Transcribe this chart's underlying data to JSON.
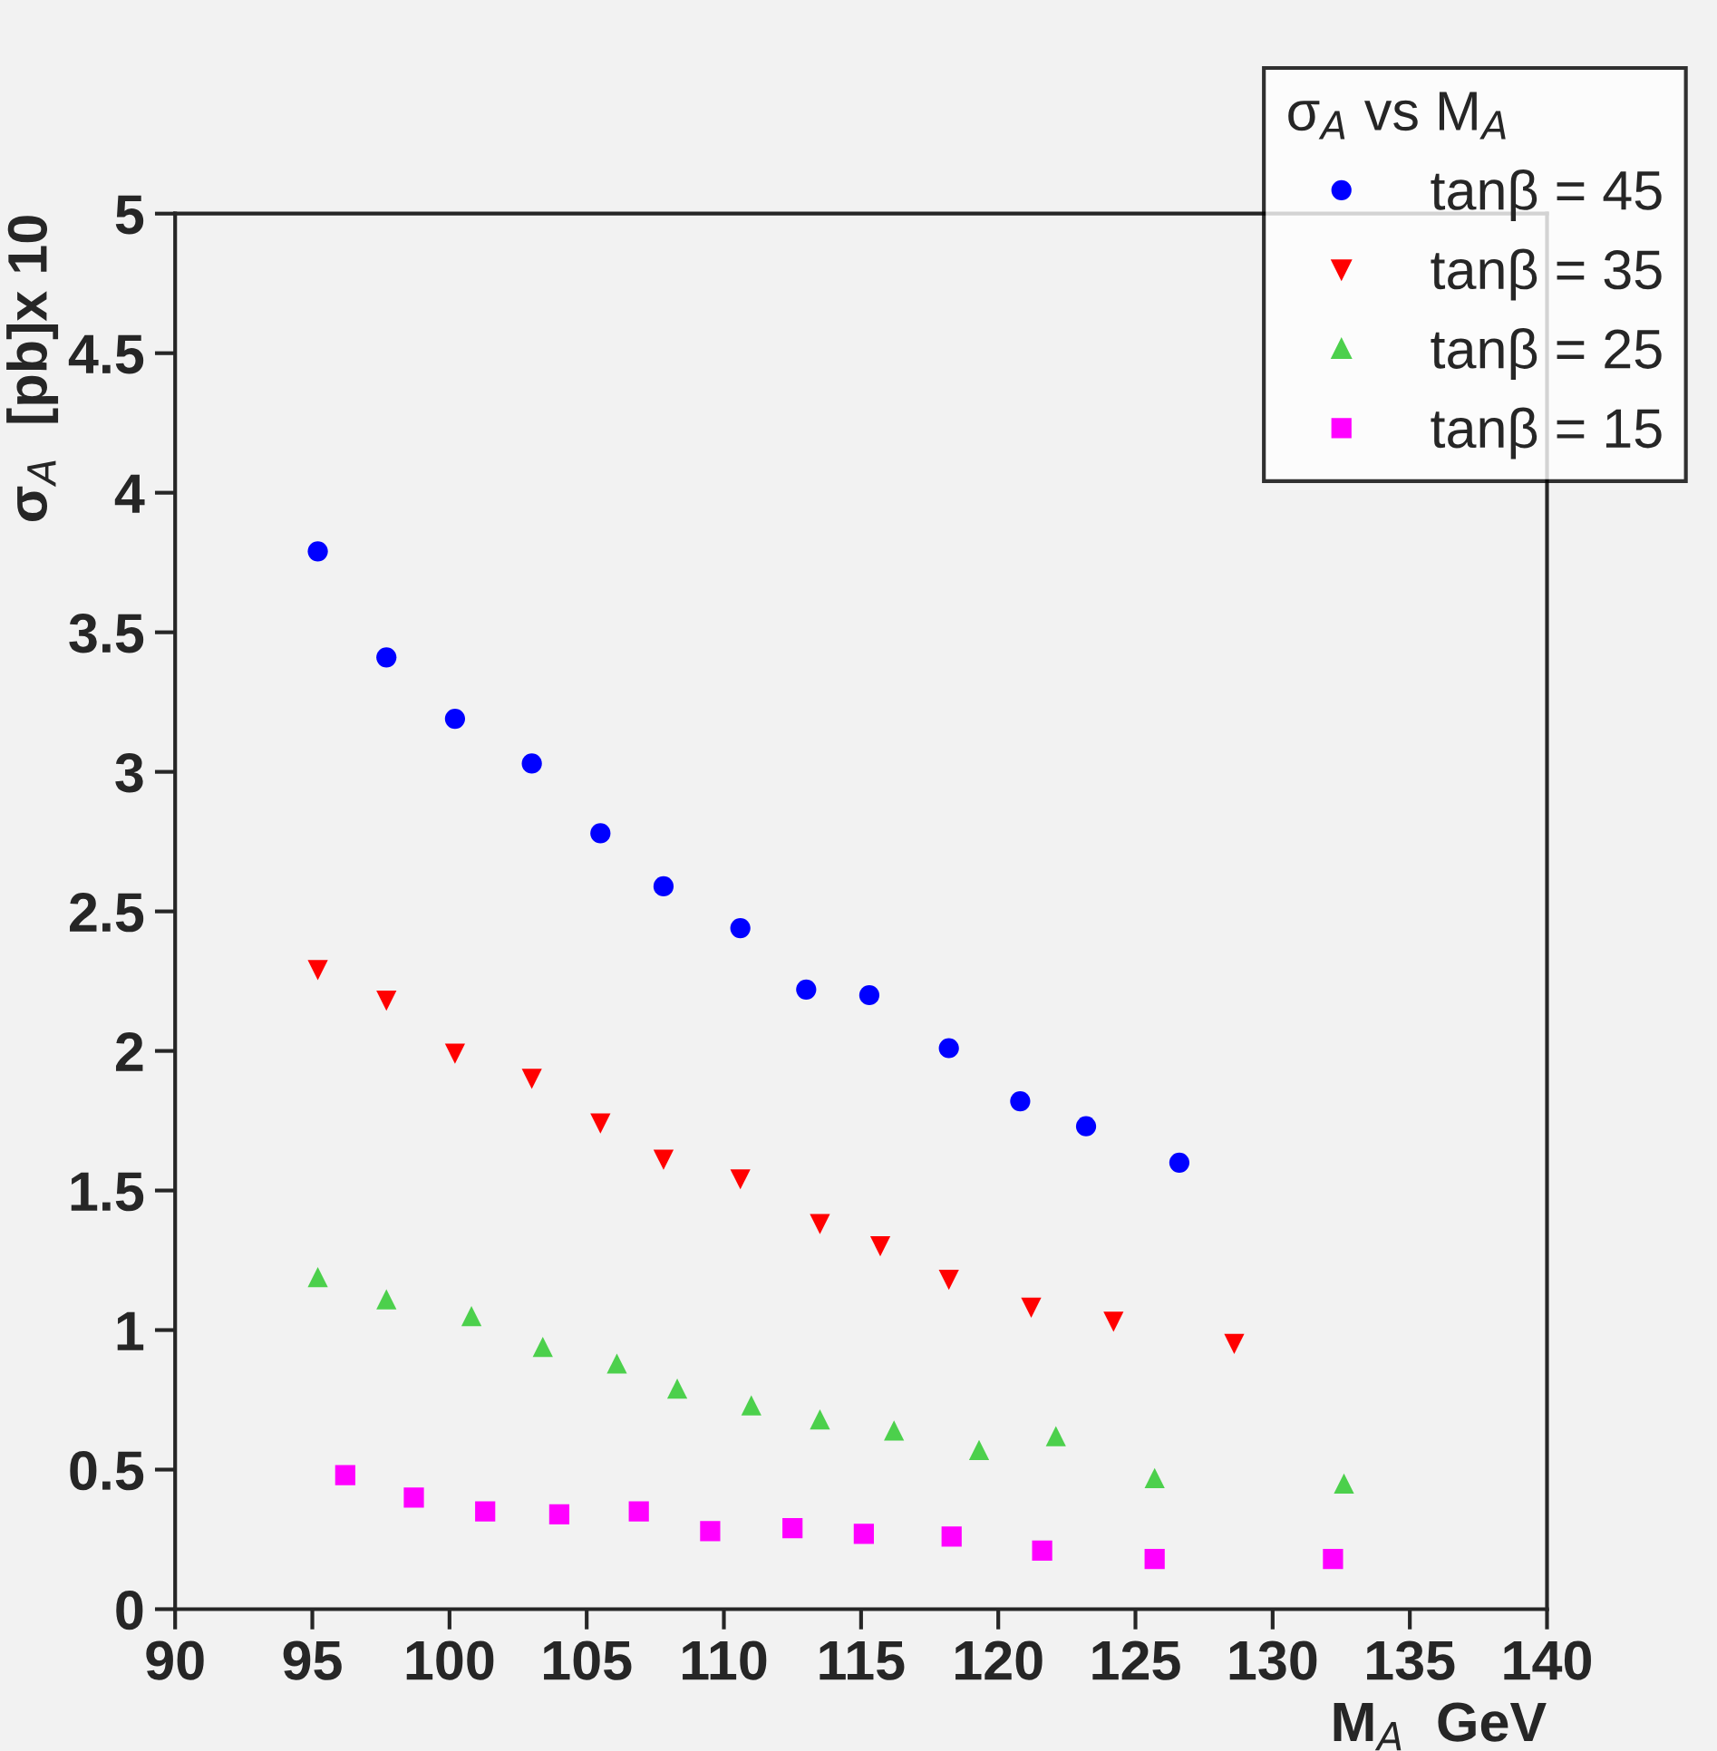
{
  "chart_data": {
    "type": "scatter",
    "xlabel": "M$_{A}$  GeV",
    "ylabel": "σ$_{A}$  [pb]x 10",
    "legend_title": "σ$_{A}$ vs M$_{A}$",
    "xlim": [
      90,
      140
    ],
    "xticks": [
      90,
      95,
      100,
      105,
      110,
      115,
      120,
      125,
      130,
      135,
      140
    ],
    "ylim": [
      0,
      5
    ],
    "yticks": [
      0,
      0.5,
      1,
      1.5,
      2,
      2.5,
      3,
      3.5,
      4,
      4.5,
      5
    ],
    "grid": false,
    "legend": "top right",
    "series": [
      {
        "name": "tanβ = 45",
        "color": "#0000ff",
        "marker": "circle",
        "x": [
          95.2,
          97.7,
          100.2,
          103.0,
          105.5,
          107.8,
          110.6,
          113.0,
          115.3,
          118.2,
          120.8,
          123.2,
          126.6
        ],
        "values": [
          3.79,
          3.41,
          3.19,
          3.03,
          2.78,
          2.59,
          2.44,
          2.22,
          2.2,
          2.01,
          1.82,
          1.73,
          1.6
        ]
      },
      {
        "name": "tanβ = 35",
        "color": "#ff0000",
        "marker": "triangle_down",
        "x": [
          95.2,
          97.7,
          100.2,
          103.0,
          105.5,
          107.8,
          110.6,
          113.5,
          115.7,
          118.2,
          121.2,
          124.2,
          128.6
        ],
        "values": [
          2.29,
          2.18,
          1.99,
          1.9,
          1.74,
          1.61,
          1.54,
          1.38,
          1.3,
          1.18,
          1.08,
          1.03,
          0.95
        ]
      },
      {
        "name": "tanβ = 25",
        "color": "#4cd04c",
        "marker": "triangle",
        "x": [
          95.2,
          97.7,
          100.8,
          103.4,
          106.1,
          108.3,
          111.0,
          113.5,
          116.2,
          119.3,
          122.1,
          125.7,
          132.6
        ],
        "values": [
          1.19,
          1.11,
          1.05,
          0.94,
          0.88,
          0.79,
          0.73,
          0.68,
          0.64,
          0.57,
          0.62,
          0.47,
          0.45
        ]
      },
      {
        "name": "tanβ = 15",
        "color": "#ff00ff",
        "marker": "square",
        "x": [
          96.2,
          98.7,
          101.3,
          104.0,
          106.9,
          109.5,
          112.5,
          115.1,
          118.3,
          121.6,
          125.7,
          132.2
        ],
        "values": [
          0.48,
          0.4,
          0.35,
          0.34,
          0.35,
          0.28,
          0.29,
          0.27,
          0.26,
          0.21,
          0.18,
          0.18
        ]
      }
    ]
  }
}
